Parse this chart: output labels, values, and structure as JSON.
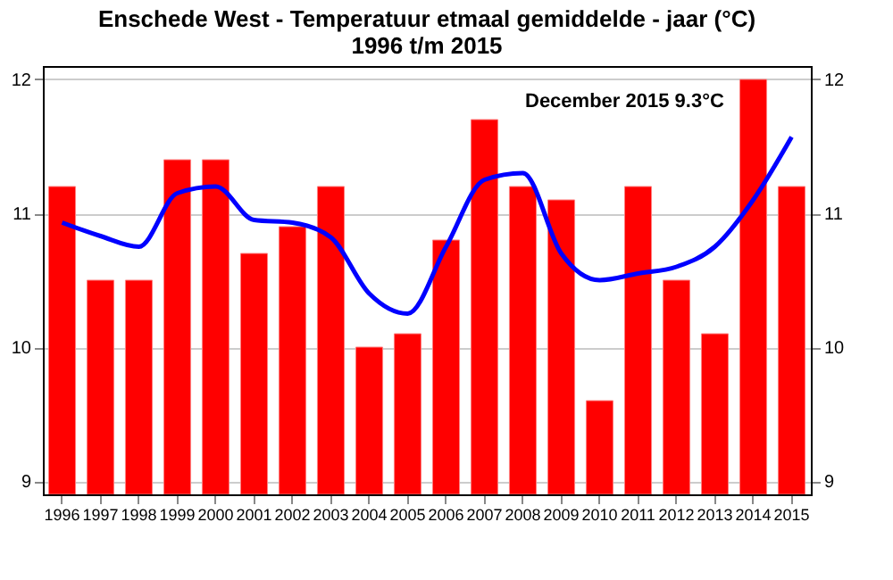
{
  "chart_data": {
    "type": "bar",
    "title": [
      "Enschede West - Temperatuur etmaal gemiddelde - jaar  (°C)",
      "1996 t/m 2015"
    ],
    "categories": [
      "1996",
      "1997",
      "1998",
      "1999",
      "2000",
      "2001",
      "2002",
      "2003",
      "2004",
      "2005",
      "2006",
      "2007",
      "2008",
      "2009",
      "2010",
      "2011",
      "2012",
      "2013",
      "2014",
      "2015"
    ],
    "series": [
      {
        "color": "#ff0000",
        "values": [
          11.2,
          10.5,
          10.5,
          11.4,
          11.4,
          10.7,
          10.9,
          11.2,
          10.0,
          10.1,
          10.8,
          11.7,
          11.2,
          11.1,
          9.6,
          11.2,
          10.5,
          10.1,
          12.0,
          11.2
        ]
      },
      {
        "type": "line",
        "color": "#0000ff",
        "values": [
          10.93,
          10.83,
          10.75,
          11.15,
          11.2,
          10.95,
          10.93,
          10.82,
          10.4,
          10.25,
          10.75,
          11.25,
          11.3,
          10.7,
          10.5,
          10.55,
          10.6,
          10.75,
          11.1,
          11.57
        ]
      }
    ],
    "ylim": [
      8.9,
      12.1
    ],
    "yticks": [
      9,
      10,
      11,
      12
    ],
    "y2lim": [
      8.9,
      12.1
    ],
    "y2ticks": [
      9,
      10,
      11,
      12
    ],
    "grid": "y",
    "marker": "none",
    "line_style": "solid",
    "annotations": [
      "December 2015  9.3°C"
    ]
  }
}
